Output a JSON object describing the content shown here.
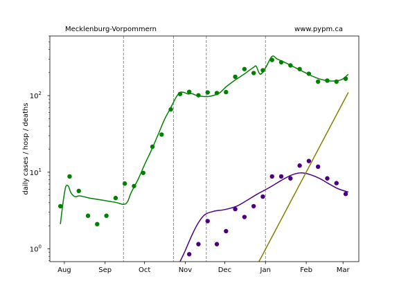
{
  "header": {
    "left_title": "Mecklenburg-Vorpommern",
    "right_title": "www.pypm.ca"
  },
  "chart_data": {
    "type": "scatter",
    "ylabel": "daily cases / hosp / deaths",
    "yscale": "log",
    "ylim": [
      0.68,
      600
    ],
    "x_unit": "date",
    "xlim": [
      "2020-07-21",
      "2021-03-13"
    ],
    "x_ticks": [
      {
        "date": "2020-08-01",
        "label": "Aug"
      },
      {
        "date": "2020-09-01",
        "label": "Sep"
      },
      {
        "date": "2020-10-01",
        "label": "Oct"
      },
      {
        "date": "2020-11-01",
        "label": "Nov"
      },
      {
        "date": "2020-12-01",
        "label": "Dec"
      },
      {
        "date": "2021-01-01",
        "label": "Jan"
      },
      {
        "date": "2021-02-01",
        "label": "Feb"
      },
      {
        "date": "2021-03-01",
        "label": "Mar"
      }
    ],
    "y_ticks": [
      {
        "value": 1,
        "base": "10",
        "exp": "0"
      },
      {
        "value": 10,
        "base": "10",
        "exp": "1"
      },
      {
        "value": 100,
        "base": "10",
        "exp": "2"
      }
    ],
    "vlines": [
      "2020-09-15",
      "2020-10-23",
      "2020-11-17",
      "2021-01-01"
    ],
    "grid": false,
    "colors": {
      "cases": "#008000",
      "hosp": "#4b0082",
      "deaths": "#808000",
      "vline": "#808080"
    },
    "series": [
      {
        "key": "cases",
        "points": [
          [
            "2020-07-29",
            3.6
          ],
          [
            "2020-08-05",
            8.8
          ],
          [
            "2020-08-12",
            5.7
          ],
          [
            "2020-08-19",
            2.7
          ],
          [
            "2020-08-26",
            2.1
          ],
          [
            "2020-09-02",
            2.7
          ],
          [
            "2020-09-09",
            4.6
          ],
          [
            "2020-09-16",
            7.1
          ],
          [
            "2020-09-23",
            6.6
          ],
          [
            "2020-09-30",
            9.8
          ],
          [
            "2020-10-07",
            21.5
          ],
          [
            "2020-10-14",
            31.0
          ],
          [
            "2020-10-21",
            66.0
          ],
          [
            "2020-10-28",
            105.0
          ],
          [
            "2020-11-04",
            112.0
          ],
          [
            "2020-11-11",
            101.0
          ],
          [
            "2020-11-18",
            110.0
          ],
          [
            "2020-11-25",
            108.0
          ],
          [
            "2020-12-02",
            111.0
          ],
          [
            "2020-12-09",
            176.0
          ],
          [
            "2020-12-16",
            222.0
          ],
          [
            "2020-12-23",
            197.0
          ],
          [
            "2020-12-30",
            214.0
          ],
          [
            "2021-01-06",
            292.0
          ],
          [
            "2021-01-13",
            272.0
          ],
          [
            "2021-01-20",
            248.0
          ],
          [
            "2021-01-27",
            222.0
          ],
          [
            "2021-02-03",
            193.0
          ],
          [
            "2021-02-10",
            152.0
          ],
          [
            "2021-02-17",
            157.0
          ],
          [
            "2021-02-24",
            152.0
          ],
          [
            "2021-03-03",
            166.0
          ]
        ],
        "model": [
          [
            "2020-07-29",
            2.1
          ],
          [
            "2020-07-31",
            4.0
          ],
          [
            "2020-08-02",
            6.4
          ],
          [
            "2020-08-04",
            6.6
          ],
          [
            "2020-08-06",
            5.4
          ],
          [
            "2020-08-09",
            4.8
          ],
          [
            "2020-08-13",
            4.9
          ],
          [
            "2020-08-20",
            4.6
          ],
          [
            "2020-08-27",
            4.4
          ],
          [
            "2020-09-03",
            4.2
          ],
          [
            "2020-09-10",
            4.0
          ],
          [
            "2020-09-15",
            3.8
          ],
          [
            "2020-09-18",
            4.1
          ],
          [
            "2020-09-21",
            5.5
          ],
          [
            "2020-09-26",
            8.0
          ],
          [
            "2020-10-01",
            12.5
          ],
          [
            "2020-10-06",
            19.0
          ],
          [
            "2020-10-11",
            30.0
          ],
          [
            "2020-10-16",
            48.0
          ],
          [
            "2020-10-21",
            70.0
          ],
          [
            "2020-10-25",
            95.0
          ],
          [
            "2020-10-28",
            110.0
          ],
          [
            "2020-10-31",
            110.0
          ],
          [
            "2020-11-03",
            105.0
          ],
          [
            "2020-11-06",
            106.0
          ],
          [
            "2020-11-10",
            100.0
          ],
          [
            "2020-11-17",
            97.0
          ],
          [
            "2020-11-22",
            100.0
          ],
          [
            "2020-11-27",
            108.0
          ],
          [
            "2020-12-02",
            130.0
          ],
          [
            "2020-12-09",
            160.0
          ],
          [
            "2020-12-16",
            192.0
          ],
          [
            "2020-12-23",
            235.0
          ],
          [
            "2020-12-25",
            240.0
          ],
          [
            "2020-12-28",
            190.0
          ],
          [
            "2021-01-01",
            230.0
          ],
          [
            "2021-01-06",
            325.0
          ],
          [
            "2021-01-10",
            300.0
          ],
          [
            "2021-01-17",
            265.0
          ],
          [
            "2021-01-24",
            230.0
          ],
          [
            "2021-01-31",
            200.0
          ],
          [
            "2021-02-07",
            175.0
          ],
          [
            "2021-02-14",
            160.0
          ],
          [
            "2021-02-21",
            155.0
          ],
          [
            "2021-02-28",
            162.0
          ],
          [
            "2021-03-05",
            190.0
          ]
        ]
      },
      {
        "key": "hosp",
        "points": [
          [
            "2020-11-04",
            0.85
          ],
          [
            "2020-11-11",
            1.15
          ],
          [
            "2020-11-18",
            2.3
          ],
          [
            "2020-11-25",
            1.15
          ],
          [
            "2020-12-02",
            1.7
          ],
          [
            "2020-12-09",
            3.3
          ],
          [
            "2020-12-16",
            2.6
          ],
          [
            "2020-12-23",
            3.6
          ],
          [
            "2020-12-30",
            4.8
          ],
          [
            "2021-01-06",
            8.8
          ],
          [
            "2021-01-13",
            8.8
          ],
          [
            "2021-01-20",
            8.3
          ],
          [
            "2021-01-27",
            12.2
          ],
          [
            "2021-02-03",
            14.0
          ],
          [
            "2021-02-10",
            11.8
          ],
          [
            "2021-02-17",
            8.3
          ],
          [
            "2021-02-24",
            7.2
          ],
          [
            "2021-03-03",
            5.2
          ]
        ],
        "model": [
          [
            "2020-10-28",
            0.68
          ],
          [
            "2020-11-01",
            0.95
          ],
          [
            "2020-11-06",
            1.5
          ],
          [
            "2020-11-11",
            2.2
          ],
          [
            "2020-11-16",
            2.8
          ],
          [
            "2020-11-23",
            3.1
          ],
          [
            "2020-12-01",
            3.25
          ],
          [
            "2020-12-10",
            3.6
          ],
          [
            "2020-12-18",
            4.3
          ],
          [
            "2020-12-26",
            5.2
          ],
          [
            "2021-01-04",
            6.3
          ],
          [
            "2021-01-13",
            7.8
          ],
          [
            "2021-01-21",
            9.2
          ],
          [
            "2021-01-28",
            9.8
          ],
          [
            "2021-02-04",
            9.3
          ],
          [
            "2021-02-11",
            8.3
          ],
          [
            "2021-02-18",
            7.1
          ],
          [
            "2021-02-25",
            6.1
          ],
          [
            "2021-03-05",
            5.5
          ]
        ]
      },
      {
        "key": "deaths",
        "points": [],
        "model": [
          [
            "2020-12-27",
            0.68
          ],
          [
            "2021-03-05",
            110.0
          ]
        ]
      }
    ]
  }
}
